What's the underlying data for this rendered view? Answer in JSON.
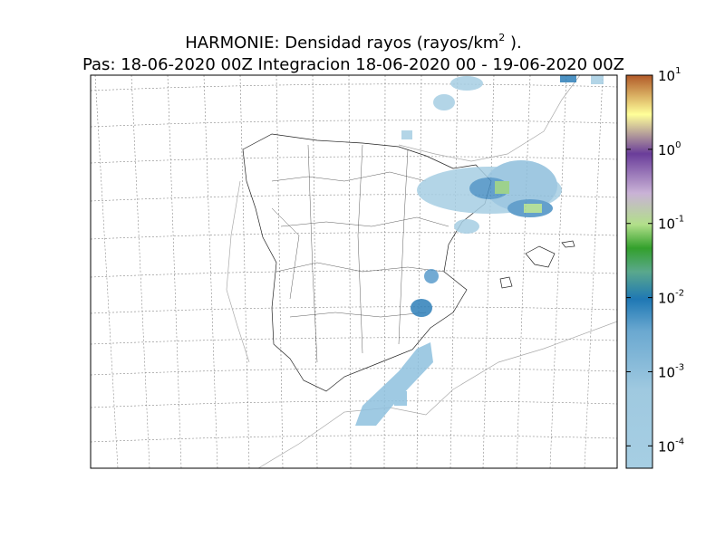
{
  "title": {
    "main": "HARMONIE: Densidad rayos  (rayos/km",
    "main_sup": "2",
    "main_end": " ).",
    "subtitle": "Pas: 18-06-2020 00Z Integracion 18-06-2020 00 - 19-06-2020 00Z"
  },
  "colorbar": {
    "scale": "log",
    "lim": [
      5e-05,
      10
    ],
    "ticks": [
      {
        "value": 10,
        "base": "10",
        "exponent": "1"
      },
      {
        "value": 1,
        "base": "10",
        "exponent": "0"
      },
      {
        "value": 0.1,
        "base": "10",
        "exponent": "-1"
      },
      {
        "value": 0.01,
        "base": "10",
        "exponent": "-2"
      },
      {
        "value": 0.001,
        "base": "10",
        "exponent": "-3"
      },
      {
        "value": 0.0001,
        "base": "10",
        "exponent": "-4"
      }
    ]
  }
}
